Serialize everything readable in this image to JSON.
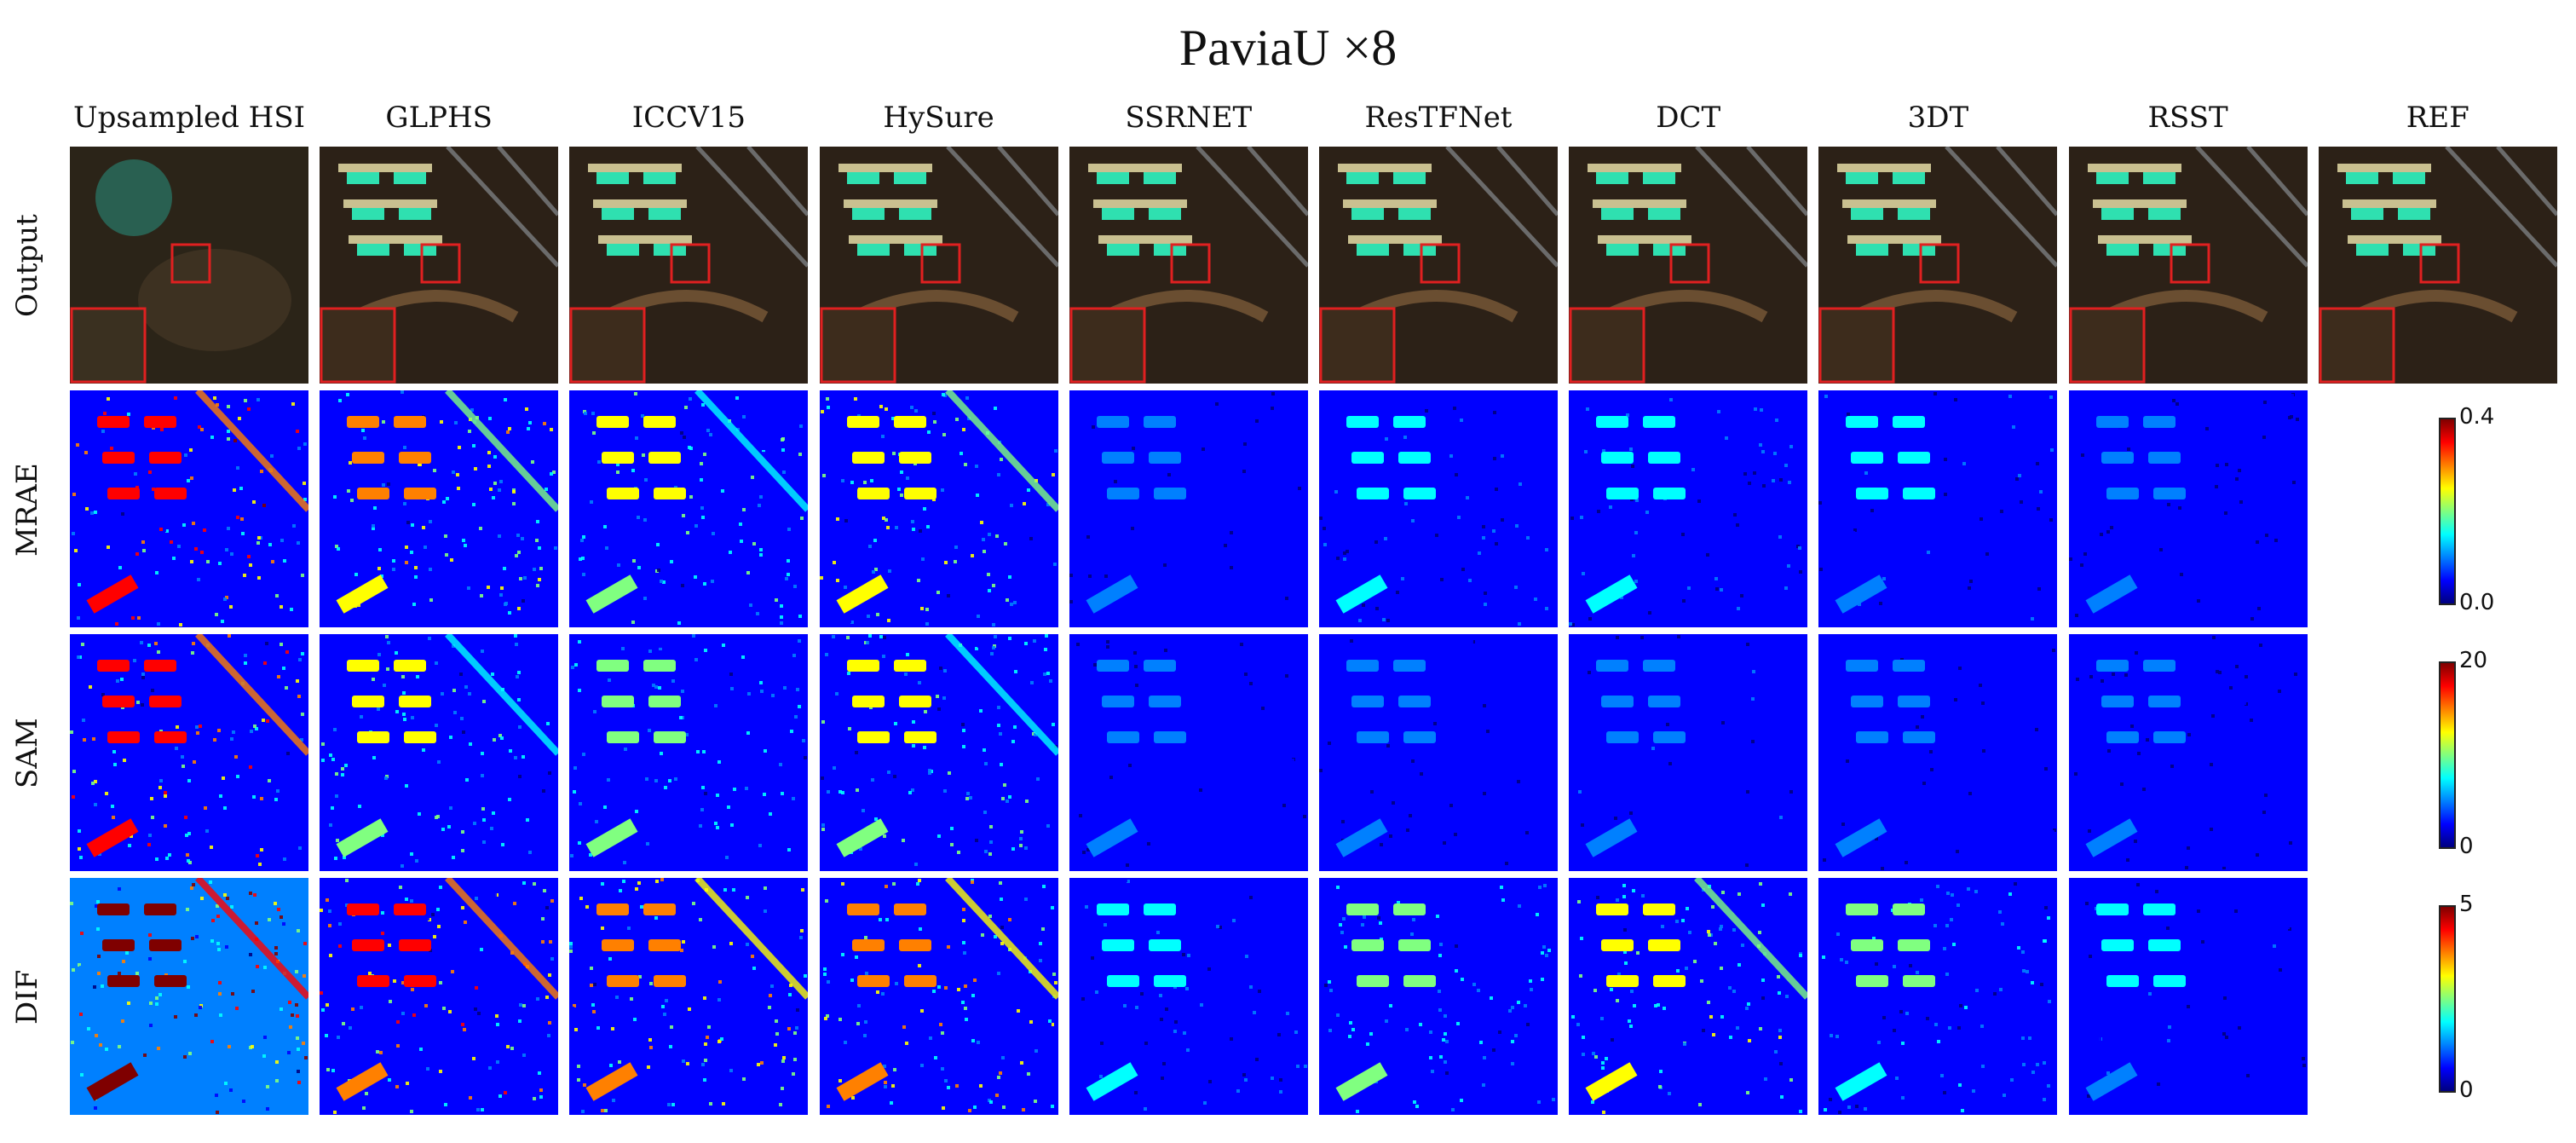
{
  "figure": {
    "title": "PaviaU ×8",
    "columns": [
      "Upsampled HSI",
      "GLPHS",
      "ICCV15",
      "HySure",
      "SSRNET",
      "ResTFNet",
      "DCT",
      "3DT",
      "RSST",
      "REF"
    ],
    "rows": [
      "Output",
      "MRAE",
      "SAM",
      "DIF"
    ],
    "colorbars": [
      {
        "row": "MRAE",
        "max_label": "0.4",
        "min_label": "0.0"
      },
      {
        "row": "SAM",
        "max_label": "20",
        "min_label": "0"
      },
      {
        "row": "DIF",
        "max_label": "5",
        "min_label": "0"
      }
    ],
    "error_levels": {
      "MRAE": [
        0.85,
        0.6,
        0.45,
        0.55,
        0.12,
        0.18,
        0.2,
        0.15,
        0.1
      ],
      "SAM": [
        0.8,
        0.45,
        0.35,
        0.45,
        0.12,
        0.12,
        0.14,
        0.12,
        0.08
      ],
      "DIF": [
        0.95,
        0.75,
        0.65,
        0.7,
        0.18,
        0.35,
        0.5,
        0.3,
        0.15
      ]
    },
    "colors": {
      "zoom_box": "#e02020",
      "jet": [
        "#00007f",
        "#0000ff",
        "#0080ff",
        "#00ffff",
        "#80ff80",
        "#ffff00",
        "#ff8000",
        "#ff0000",
        "#7f0000"
      ]
    }
  }
}
